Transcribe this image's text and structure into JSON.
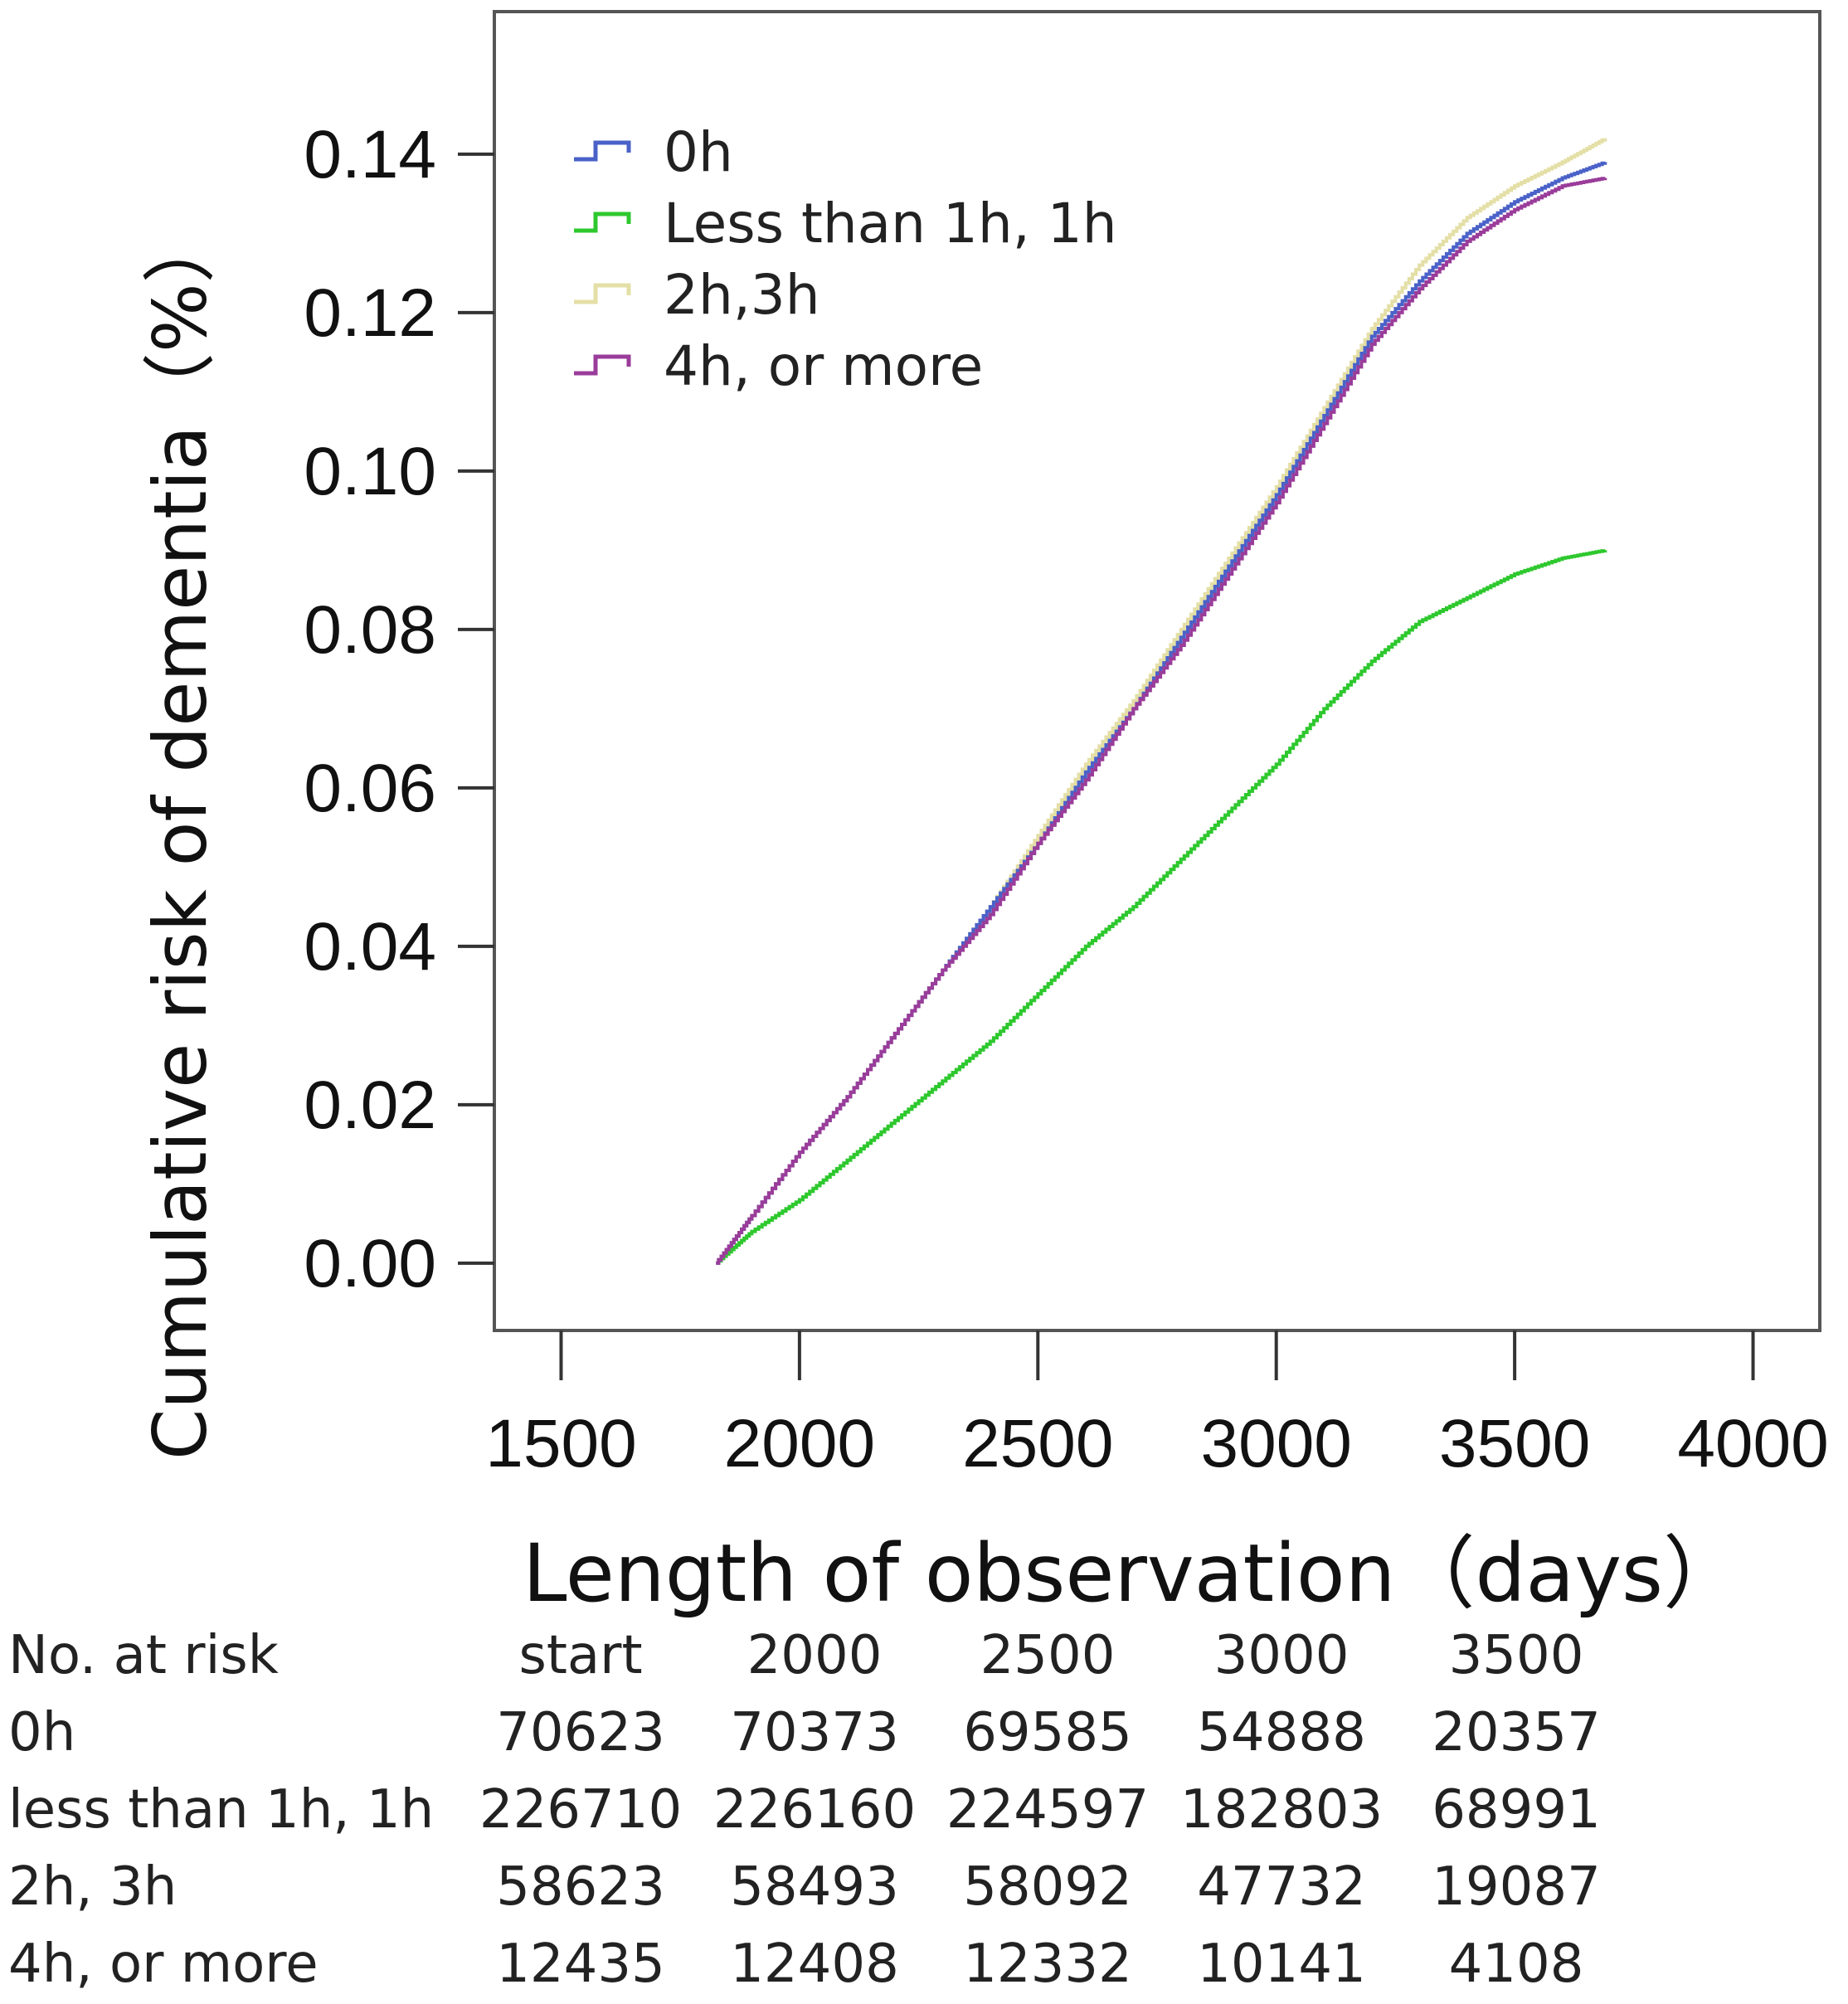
{
  "chart_data": {
    "type": "line",
    "ylabel": "Cumulative risk of dementia（%）",
    "xlabel": "Length of observation（days）",
    "xlim": [
      1360,
      4140
    ],
    "ylim": [
      -0.0085,
      0.158
    ],
    "xticks": [
      "1500",
      "2000",
      "2500",
      "3000",
      "3500",
      "4000"
    ],
    "xtick_values": [
      1500,
      2000,
      2500,
      3000,
      3500,
      4000
    ],
    "yticks": [
      "0.00",
      "0.02",
      "0.04",
      "0.06",
      "0.08",
      "0.10",
      "0.12",
      "0.14"
    ],
    "ytick_values": [
      0,
      0.02,
      0.04,
      0.06,
      0.08,
      0.1,
      0.12,
      0.14
    ],
    "legend_position": "top-left",
    "series": [
      {
        "name": "0h",
        "color": "#4a62c8",
        "x": [
          1825,
          1900,
          2000,
          2100,
          2200,
          2300,
          2400,
          2500,
          2600,
          2700,
          2800,
          2900,
          3000,
          3100,
          3200,
          3300,
          3400,
          3500,
          3600,
          3690
        ],
        "y": [
          0,
          0.006,
          0.014,
          0.021,
          0.029,
          0.037,
          0.045,
          0.053,
          0.062,
          0.07,
          0.079,
          0.088,
          0.097,
          0.107,
          0.117,
          0.124,
          0.13,
          0.134,
          0.137,
          0.139
        ]
      },
      {
        "name": "Less than 1h, 1h",
        "color": "#2ec82e",
        "x": [
          1825,
          1900,
          2000,
          2100,
          2200,
          2300,
          2400,
          2500,
          2600,
          2700,
          2800,
          2900,
          3000,
          3100,
          3200,
          3300,
          3400,
          3500,
          3600,
          3690
        ],
        "y": [
          0,
          0.004,
          0.008,
          0.013,
          0.018,
          0.023,
          0.028,
          0.034,
          0.04,
          0.045,
          0.051,
          0.057,
          0.063,
          0.07,
          0.076,
          0.081,
          0.084,
          0.087,
          0.089,
          0.09
        ]
      },
      {
        "name": "2h,3h",
        "color": "#e4dfa6",
        "x": [
          1825,
          1900,
          2000,
          2100,
          2200,
          2300,
          2400,
          2500,
          2600,
          2700,
          2800,
          2900,
          3000,
          3100,
          3200,
          3300,
          3400,
          3500,
          3600,
          3690
        ],
        "y": [
          0,
          0.006,
          0.014,
          0.021,
          0.029,
          0.037,
          0.045,
          0.054,
          0.063,
          0.071,
          0.08,
          0.089,
          0.098,
          0.108,
          0.118,
          0.126,
          0.132,
          0.136,
          0.139,
          0.142
        ]
      },
      {
        "name": "4h, or more",
        "color": "#9a3c9a",
        "x": [
          1825,
          1900,
          2000,
          2100,
          2200,
          2300,
          2400,
          2500,
          2600,
          2700,
          2800,
          2900,
          3000,
          3100,
          3200,
          3300,
          3400,
          3500,
          3600,
          3690
        ],
        "y": [
          0,
          0.006,
          0.014,
          0.021,
          0.029,
          0.037,
          0.044,
          0.053,
          0.061,
          0.07,
          0.078,
          0.087,
          0.096,
          0.106,
          0.116,
          0.123,
          0.129,
          0.133,
          0.136,
          0.137
        ]
      }
    ]
  },
  "risk_table": {
    "header_label": "No. at risk",
    "columns": [
      "start",
      "2000",
      "2500",
      "3000",
      "3500"
    ],
    "rows": [
      {
        "label": "0h",
        "values": [
          "70623",
          "70373",
          "69585",
          "54888",
          "20357"
        ]
      },
      {
        "label": "less than 1h, 1h",
        "values": [
          "226710",
          "226160",
          "224597",
          "182803",
          "68991"
        ]
      },
      {
        "label": "2h, 3h",
        "values": [
          "58623",
          "58493",
          "58092",
          "47732",
          "19087"
        ]
      },
      {
        "label": "4h, or more",
        "values": [
          "12435",
          "12408",
          "12332",
          "10141",
          "4108"
        ]
      }
    ]
  }
}
